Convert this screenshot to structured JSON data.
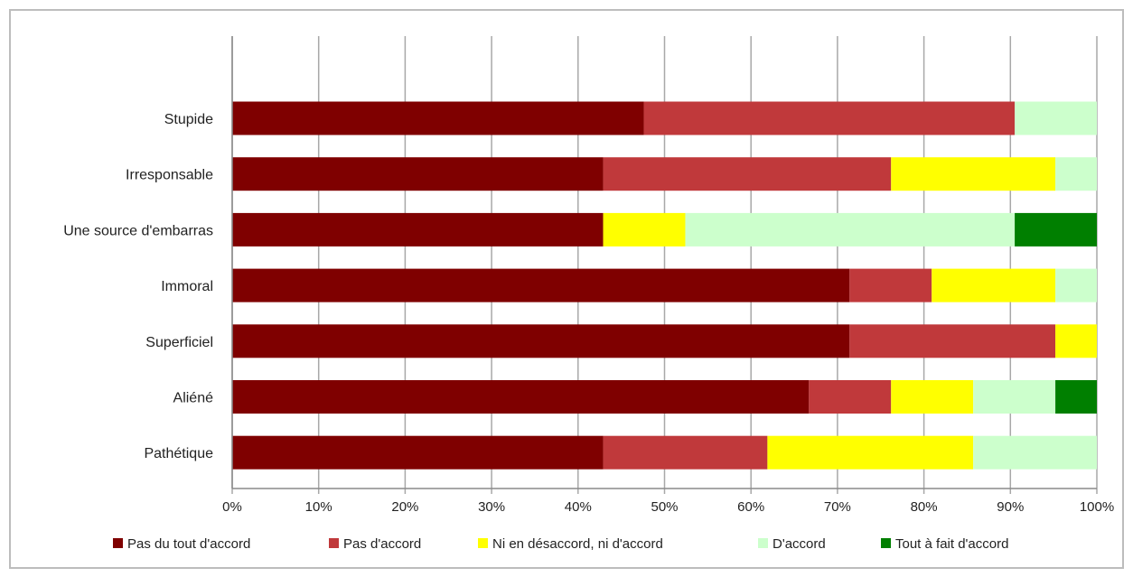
{
  "chart_data": {
    "type": "bar",
    "orientation": "horizontal",
    "stacked": "percent",
    "categories": [
      "Stupide",
      "Irresponsable",
      "Une source d'embarras",
      "Immoral",
      "Superficiel",
      "Aliéné",
      "Pathétique"
    ],
    "series": [
      {
        "name": "Pas du tout d'accord",
        "color": "#7f0000",
        "values": [
          47.6,
          42.9,
          42.9,
          71.4,
          71.4,
          66.7,
          42.9
        ]
      },
      {
        "name": "Pas d'accord",
        "color": "#c0393b",
        "values": [
          42.9,
          33.3,
          0,
          9.5,
          23.8,
          9.5,
          19.0
        ]
      },
      {
        "name": "Ni en désaccord, ni d'accord",
        "color": "#ffff00",
        "values": [
          0,
          19.0,
          9.5,
          14.3,
          4.8,
          9.5,
          23.8
        ]
      },
      {
        "name": "D'accord",
        "color": "#ccffcc",
        "values": [
          9.5,
          4.8,
          38.1,
          4.8,
          0,
          9.5,
          14.3
        ]
      },
      {
        "name": "Tout à fait d'accord",
        "color": "#007f00",
        "values": [
          0,
          0,
          9.5,
          0,
          0,
          4.8,
          0
        ]
      }
    ],
    "xlim": [
      0,
      100
    ],
    "x_ticks": [
      "0%",
      "10%",
      "20%",
      "30%",
      "40%",
      "50%",
      "60%",
      "70%",
      "80%",
      "90%",
      "100%"
    ],
    "grid": "vertical",
    "legend_position": "bottom",
    "title": "",
    "xlabel": "",
    "ylabel": ""
  }
}
